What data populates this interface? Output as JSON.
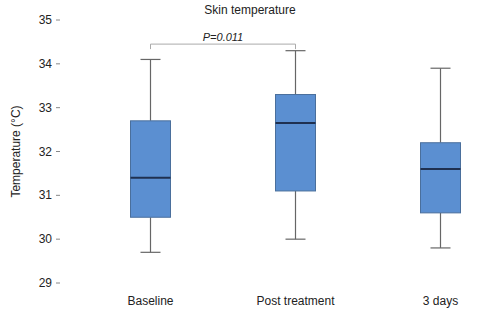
{
  "chart_data": {
    "type": "box",
    "title": "Skin temperature",
    "y_label": "Temperature (°C)",
    "categories": [
      "Baseline",
      "Post treatment",
      "3 days"
    ],
    "boxes": [
      {
        "min": 29.7,
        "q1": 30.5,
        "median": 31.4,
        "q3": 32.7,
        "max": 34.1
      },
      {
        "min": 30.0,
        "q1": 31.1,
        "median": 32.65,
        "q3": 33.3,
        "max": 34.3
      },
      {
        "min": 29.8,
        "q1": 30.6,
        "median": 31.6,
        "q3": 32.2,
        "max": 33.9
      }
    ],
    "color": "#5b8fd1",
    "ylim": [
      29,
      35
    ],
    "yticks": [
      29,
      30,
      31,
      32,
      33,
      34,
      35
    ],
    "grid": false,
    "annotations": [
      {
        "text": "P=0.011",
        "from": 0,
        "to": 1,
        "y": 34.45
      }
    ]
  }
}
